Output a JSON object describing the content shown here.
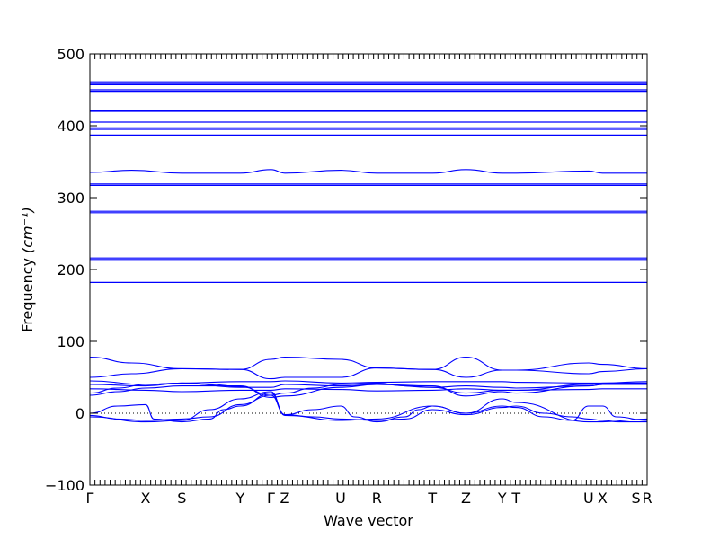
{
  "chart_data": {
    "type": "line",
    "title": "",
    "xlabel": "Wave vector",
    "ylabel": "Frequency",
    "ylabel_unit": "(cm⁻¹)",
    "ylim": [
      -100,
      500
    ],
    "yticks": [
      -100,
      0,
      100,
      200,
      300,
      400,
      500
    ],
    "ytick_labels": [
      "−100",
      "0",
      "100",
      "200",
      "300",
      "400",
      "500"
    ],
    "xlim": [
      0,
      20
    ],
    "high_symmetry_points": [
      {
        "label": "Γ",
        "x": 0
      },
      {
        "label": "X",
        "x": 2.0
      },
      {
        "label": "S",
        "x": 3.3
      },
      {
        "label": "Y",
        "x": 5.4
      },
      {
        "label": "Γ",
        "x": 6.5
      },
      {
        "label": "Z",
        "x": 7.0
      },
      {
        "label": "U",
        "x": 9.0
      },
      {
        "label": "R",
        "x": 10.3
      },
      {
        "label": "T",
        "x": 12.3
      },
      {
        "label": "Z",
        "x": 13.5
      },
      {
        "label": "Y",
        "x": 14.8
      },
      {
        "label": "T",
        "x": 15.3
      },
      {
        "label": "U",
        "x": 17.9
      },
      {
        "label": "X",
        "x": 18.4
      },
      {
        "label": "S",
        "x": 19.6
      },
      {
        "label": "R",
        "x": 20.0
      }
    ],
    "zero_line": 0,
    "line_color": "#0000ff",
    "flat_bands": [
      457,
      459,
      461,
      448,
      450,
      420,
      421,
      405,
      395,
      397,
      387,
      317,
      319,
      281,
      279,
      216,
      214,
      182
    ],
    "dispersive_bands": [
      {
        "name": "",
        "points": [
          [
            0,
            335
          ],
          [
            1.5,
            338
          ],
          [
            3.3,
            334
          ],
          [
            5.4,
            334
          ],
          [
            6.5,
            339
          ],
          [
            7,
            334
          ],
          [
            9,
            338
          ],
          [
            10.3,
            334
          ],
          [
            12.3,
            334
          ],
          [
            13.5,
            339
          ],
          [
            14.8,
            334
          ],
          [
            15.3,
            334
          ],
          [
            17.9,
            337
          ],
          [
            18.4,
            334
          ],
          [
            20,
            334
          ]
        ]
      },
      {
        "name": "",
        "points": [
          [
            0,
            78
          ],
          [
            1.5,
            70
          ],
          [
            3.3,
            62
          ],
          [
            5.4,
            61
          ],
          [
            6.5,
            75
          ],
          [
            7,
            78
          ],
          [
            9,
            75
          ],
          [
            10.3,
            63
          ],
          [
            12.3,
            61
          ],
          [
            13.5,
            78
          ],
          [
            14.8,
            60
          ],
          [
            15.3,
            60
          ],
          [
            17.9,
            70
          ],
          [
            18.4,
            68
          ],
          [
            20,
            62
          ]
        ]
      },
      {
        "name": "",
        "points": [
          [
            0,
            50
          ],
          [
            1.5,
            55
          ],
          [
            3.3,
            62
          ],
          [
            5.4,
            61
          ],
          [
            6.5,
            48
          ],
          [
            7,
            50
          ],
          [
            9,
            50
          ],
          [
            10.3,
            63
          ],
          [
            12.3,
            61
          ],
          [
            13.5,
            50
          ],
          [
            14.8,
            60
          ],
          [
            15.3,
            60
          ],
          [
            17.9,
            55
          ],
          [
            18.4,
            58
          ],
          [
            20,
            62
          ]
        ]
      },
      {
        "name": "",
        "points": [
          [
            0,
            45
          ],
          [
            2,
            40
          ],
          [
            3.3,
            42
          ],
          [
            5.4,
            44
          ],
          [
            6.5,
            44
          ],
          [
            7,
            45
          ],
          [
            9,
            42
          ],
          [
            10.3,
            43
          ],
          [
            12.3,
            44
          ],
          [
            13.5,
            44
          ],
          [
            14.8,
            44
          ],
          [
            15.3,
            43
          ],
          [
            17.9,
            42
          ],
          [
            18.4,
            42
          ],
          [
            20,
            44
          ]
        ]
      },
      {
        "name": "",
        "points": [
          [
            0,
            40
          ],
          [
            2,
            38
          ],
          [
            3.3,
            42
          ],
          [
            5.4,
            36
          ],
          [
            6.5,
            36
          ],
          [
            7,
            40
          ],
          [
            9,
            38
          ],
          [
            10.3,
            40
          ],
          [
            12.3,
            36
          ],
          [
            13.5,
            38
          ],
          [
            14.8,
            36
          ],
          [
            15.3,
            35
          ],
          [
            17.9,
            38
          ],
          [
            18.4,
            40
          ],
          [
            20,
            40
          ]
        ]
      },
      {
        "name": "",
        "points": [
          [
            0,
            34
          ],
          [
            2,
            32
          ],
          [
            3.3,
            30
          ],
          [
            5.4,
            32
          ],
          [
            6.5,
            32
          ],
          [
            7,
            34
          ],
          [
            9,
            33
          ],
          [
            10.3,
            31
          ],
          [
            12.3,
            32
          ],
          [
            13.5,
            34
          ],
          [
            14.8,
            32
          ],
          [
            15.3,
            32
          ],
          [
            17.9,
            33
          ],
          [
            18.4,
            34
          ],
          [
            20,
            34
          ]
        ]
      },
      {
        "name": "",
        "points": [
          [
            0,
            28
          ],
          [
            1,
            35
          ],
          [
            2,
            40
          ],
          [
            3.3,
            42
          ],
          [
            4.3,
            40
          ],
          [
            5.4,
            37
          ],
          [
            6.5,
            25
          ],
          [
            7,
            28
          ],
          [
            8,
            35
          ],
          [
            9,
            40
          ],
          [
            10.3,
            42
          ],
          [
            11.3,
            38
          ],
          [
            12.3,
            36
          ],
          [
            13.5,
            28
          ],
          [
            14.8,
            32
          ],
          [
            15.3,
            32
          ],
          [
            17.9,
            40
          ],
          [
            18.4,
            42
          ],
          [
            20,
            42
          ]
        ]
      },
      {
        "name": "",
        "points": [
          [
            0,
            25
          ],
          [
            1,
            30
          ],
          [
            2,
            35
          ],
          [
            3.3,
            38
          ],
          [
            5.4,
            38
          ],
          [
            6.5,
            22
          ],
          [
            7,
            24
          ],
          [
            9,
            36
          ],
          [
            10.3,
            40
          ],
          [
            12.3,
            38
          ],
          [
            13.5,
            24
          ],
          [
            14.8,
            30
          ],
          [
            15.3,
            28
          ],
          [
            17.9,
            38
          ],
          [
            18.4,
            40
          ],
          [
            20,
            40
          ]
        ]
      },
      {
        "name": "",
        "points": [
          [
            0,
            0
          ],
          [
            1,
            10
          ],
          [
            2,
            12
          ],
          [
            2.3,
            -8
          ],
          [
            3.3,
            -12
          ],
          [
            4.3,
            -8
          ],
          [
            4.8,
            5
          ],
          [
            5.4,
            10
          ],
          [
            6.5,
            28
          ],
          [
            7,
            -2
          ],
          [
            8,
            5
          ],
          [
            9,
            10
          ],
          [
            9.5,
            -5
          ],
          [
            10.3,
            -12
          ],
          [
            11.3,
            -5
          ],
          [
            11.8,
            5
          ],
          [
            12.3,
            10
          ],
          [
            13.5,
            0
          ],
          [
            14.8,
            10
          ],
          [
            15.3,
            8
          ],
          [
            16.3,
            -5
          ],
          [
            17.3,
            -10
          ],
          [
            17.9,
            10
          ],
          [
            18.4,
            10
          ],
          [
            18.9,
            -5
          ],
          [
            20,
            -10
          ]
        ]
      },
      {
        "name": "",
        "points": [
          [
            0,
            -3
          ],
          [
            1,
            -8
          ],
          [
            2,
            -10
          ],
          [
            3.3,
            -8
          ],
          [
            4.3,
            -5
          ],
          [
            5.4,
            12
          ],
          [
            6.5,
            25
          ],
          [
            7,
            -2
          ],
          [
            8,
            -5
          ],
          [
            9,
            -8
          ],
          [
            10.3,
            -10
          ],
          [
            11.3,
            -8
          ],
          [
            12.3,
            5
          ],
          [
            13.5,
            -2
          ],
          [
            14.8,
            8
          ],
          [
            15.3,
            10
          ],
          [
            16.3,
            0
          ],
          [
            17.3,
            -5
          ],
          [
            17.9,
            -8
          ],
          [
            18.4,
            -10
          ],
          [
            19,
            -12
          ],
          [
            20,
            -12
          ]
        ]
      },
      {
        "name": "",
        "points": [
          [
            0,
            -5
          ],
          [
            2,
            -12
          ],
          [
            3.3,
            -10
          ],
          [
            4.3,
            5
          ],
          [
            5.4,
            20
          ],
          [
            6.5,
            30
          ],
          [
            7,
            -3
          ],
          [
            9,
            -10
          ],
          [
            10.3,
            -8
          ],
          [
            12.3,
            10
          ],
          [
            13.5,
            0
          ],
          [
            14.8,
            20
          ],
          [
            15.3,
            15
          ],
          [
            17.9,
            -12
          ],
          [
            18.4,
            -12
          ],
          [
            20,
            -8
          ]
        ]
      }
    ]
  }
}
